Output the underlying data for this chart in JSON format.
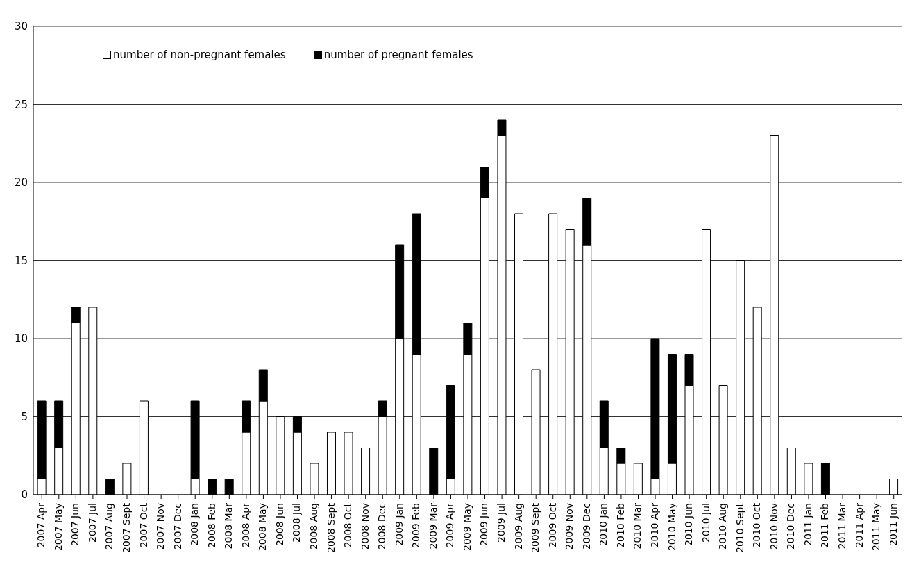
{
  "chart_data": {
    "type": "bar",
    "stacked": true,
    "categories": [
      "2007 Apr",
      "2007 May",
      "2007 Jun",
      "2007 Jul",
      "2007 Aug",
      "2007 Sept",
      "2007 Oct",
      "2007 Nov",
      "2007 Dec",
      "2008 Jan",
      "2008 Feb",
      "2008 Mar",
      "2008 Apr",
      "2008 May",
      "2008 Jun",
      "2008 Jul",
      "2008 Aug",
      "2008 Sept",
      "2008 Oct",
      "2008 Nov",
      "2008 Dec",
      "2009 Jan",
      "2009 Feb",
      "2009 Mar",
      "2009 Apr",
      "2009 May",
      "2009 Jun",
      "2009 Jul",
      "2009 Aug",
      "2009 Sept",
      "2009 Oct",
      "2009 Nov",
      "2009 Dec",
      "2010 Jan",
      "2010 Feb",
      "2010 Mar",
      "2010 Apr",
      "2010 May",
      "2010 Jun",
      "2010 Jul",
      "2010 Aug",
      "2010 Sept",
      "2010 Oct",
      "2010 Nov",
      "2010 Dec",
      "2011 Jan",
      "2011 Feb",
      "2011 Mar",
      "2011 Apr",
      "2011 May",
      "2011 Jun"
    ],
    "series": [
      {
        "name": "number of non-pregnant females",
        "color": "#ffffff",
        "values": [
          1,
          3,
          11,
          12,
          0,
          2,
          6,
          0,
          0,
          1,
          0,
          0,
          4,
          6,
          5,
          4,
          2,
          4,
          4,
          3,
          5,
          10,
          9,
          0,
          1,
          9,
          19,
          23,
          18,
          8,
          18,
          17,
          16,
          3,
          2,
          2,
          1,
          2,
          7,
          17,
          7,
          15,
          12,
          23,
          3,
          2,
          0,
          0,
          0,
          0,
          1
        ]
      },
      {
        "name": "number of pregnant females",
        "color": "#000000",
        "values": [
          5,
          3,
          1,
          0,
          1,
          0,
          0,
          0,
          0,
          5,
          1,
          1,
          2,
          2,
          0,
          1,
          0,
          0,
          0,
          0,
          1,
          6,
          9,
          3,
          6,
          2,
          2,
          1,
          0,
          0,
          0,
          0,
          3,
          3,
          1,
          0,
          9,
          7,
          2,
          0,
          0,
          0,
          0,
          0,
          0,
          0,
          2,
          0,
          0,
          0,
          0
        ]
      }
    ],
    "ylim": [
      0,
      30
    ],
    "yticks": [
      0,
      5,
      10,
      15,
      20,
      25,
      30
    ],
    "grid": "y",
    "legend": "top left"
  }
}
